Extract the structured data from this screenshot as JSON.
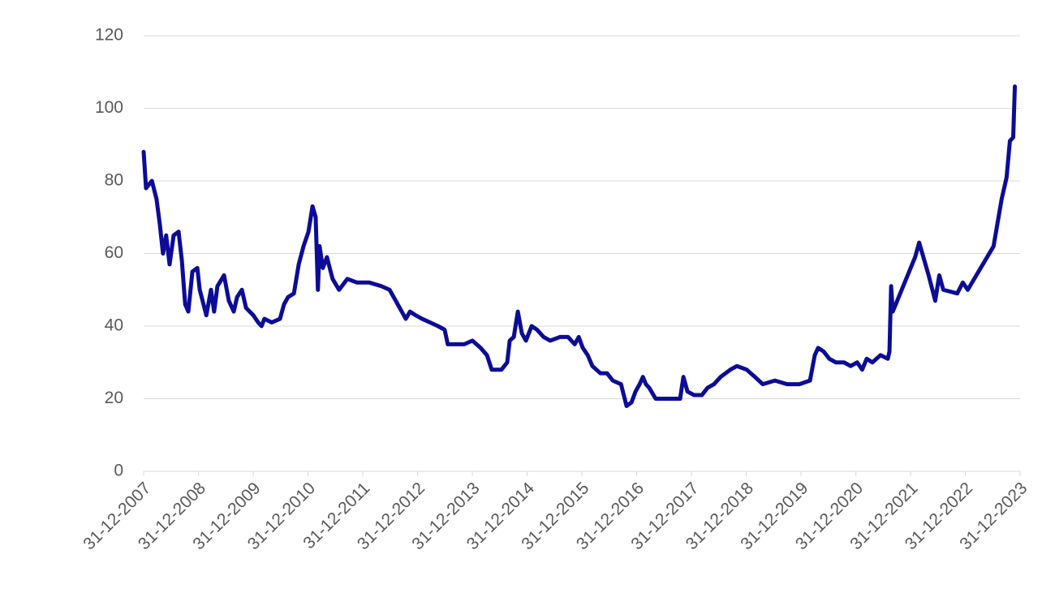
{
  "chart_data": {
    "type": "line",
    "color": "#0c0c98",
    "grid": true,
    "x": [
      "31-12-2007",
      "16-01-2008",
      "24-02-2008",
      "26-03-2008",
      "17-04-2008",
      "08-05-2008",
      "29-05-2008",
      "21-06-2008",
      "18-07-2008",
      "20-08-2008",
      "11-09-2008",
      "03-10-2008",
      "24-10-2008",
      "20-11-2008",
      "23-12-2008",
      "08-01-2009",
      "21-02-2009",
      "24-03-2009",
      "14-04-2009",
      "06-05-2009",
      "19-06-2009",
      "21-07-2009",
      "23-08-2009",
      "14-09-2009",
      "16-10-2009",
      "13-11-2009",
      "31-12-2009",
      "02-02-2010",
      "24-02-2010",
      "15-03-2010",
      "03-05-2010",
      "27-06-2010",
      "24-07-2010",
      "20-08-2010",
      "28-09-2010",
      "30-10-2010",
      "01-12-2010",
      "03-01-2011",
      "30-01-2011",
      "20-02-2011",
      "07-03-2011",
      "18-03-2011",
      "09-04-2011",
      "06-05-2011",
      "13-06-2011",
      "26-07-2011",
      "19-09-2011",
      "23-11-2011",
      "13-02-2012",
      "03-05-2012",
      "27-06-2012",
      "20-08-2012",
      "13-10-2012",
      "10-11-2012",
      "17-12-2012",
      "30-01-2013",
      "24-03-2013",
      "16-05-2013",
      "29-06-2013",
      "20-07-2013",
      "14-09-2013",
      "07-11-2013",
      "31-12-2013",
      "24-02-2014",
      "07-04-2014",
      "09-05-2014",
      "13-07-2014",
      "20-08-2014",
      "06-09-2014",
      "03-10-2014",
      "30-10-2014",
      "26-11-2014",
      "23-12-2014",
      "30-01-2015",
      "07-03-2015",
      "20-04-2015",
      "03-06-2015",
      "07-08-2015",
      "30-09-2015",
      "13-11-2015",
      "10-12-2015",
      "06-01-2016",
      "08-02-2016",
      "10-03-2016",
      "03-05-2016",
      "16-06-2016",
      "24-07-2016",
      "17-09-2016",
      "24-10-2016",
      "26-11-2016",
      "23-12-2016",
      "19-01-2017",
      "10-02-2017",
      "02-03-2017",
      "24-03-2017",
      "06-05-2017",
      "13-06-2017",
      "07-08-2017",
      "16-10-2017",
      "07-11-2017",
      "04-12-2017",
      "17-01-2018",
      "10-03-2018",
      "17-04-2018",
      "30-05-2018",
      "13-07-2018",
      "16-09-2018",
      "30-10-2018",
      "03-01-2019",
      "30-01-2019",
      "27-02-2019",
      "20-04-2019",
      "10-07-2019",
      "30-09-2019",
      "20-12-2019",
      "29-02-2020",
      "01-04-2020",
      "23-04-2020",
      "30-05-2020",
      "07-07-2020",
      "20-08-2020",
      "13-10-2020",
      "26-11-2020",
      "09-01-2021",
      "11-02-2021",
      "13-03-2021",
      "20-04-2021",
      "13-06-2021",
      "01-08-2021",
      "12-08-2021",
      "23-08-2021",
      "03-09-2021",
      "30-01-2022",
      "26-02-2022",
      "30-04-2022",
      "13-06-2022",
      "10-07-2022",
      "06-08-2022",
      "07-11-2022",
      "14-12-2022",
      "16-01-2023",
      "07-07-2023",
      "30-08-2023",
      "02-10-2023",
      "24-10-2023",
      "15-11-2023",
      "26-11-2023"
    ],
    "values": [
      88,
      78,
      80,
      75,
      68,
      60,
      65,
      57,
      65,
      66,
      58,
      46,
      44,
      55,
      56,
      50,
      43,
      50,
      44,
      51,
      54,
      47,
      44,
      48,
      50,
      45,
      43,
      41,
      40,
      42,
      41,
      42,
      46,
      48,
      49,
      57,
      62,
      66,
      73,
      70,
      50,
      62,
      56,
      59,
      53,
      50,
      53,
      52,
      52,
      51,
      50,
      46,
      42,
      44,
      43,
      42,
      41,
      40,
      39,
      35,
      35,
      35,
      36,
      34,
      32,
      28,
      28,
      30,
      36,
      37,
      44,
      38,
      36,
      40,
      39,
      37,
      36,
      37,
      37,
      35,
      37,
      34,
      32,
      29,
      27,
      27,
      25,
      24,
      18,
      19,
      22,
      24,
      26,
      24,
      23,
      20,
      20,
      20,
      20,
      26,
      22,
      21,
      21,
      23,
      24,
      26,
      28,
      29,
      28,
      27,
      26,
      24,
      25,
      24,
      24,
      25,
      32,
      34,
      33,
      31,
      30,
      30,
      29,
      30,
      28,
      31,
      30,
      32,
      31,
      33,
      51,
      44,
      59,
      63,
      54,
      47,
      54,
      50,
      49,
      52,
      50,
      62,
      75,
      81,
      91,
      92,
      106
    ],
    "xlim": [
      "31-12-2007",
      "31-12-2023"
    ],
    "xticks": [
      "31-12-2007",
      "31-12-2008",
      "31-12-2009",
      "31-12-2010",
      "31-12-2011",
      "31-12-2012",
      "31-12-2013",
      "31-12-2014",
      "31-12-2015",
      "31-12-2016",
      "31-12-2017",
      "31-12-2018",
      "31-12-2019",
      "31-12-2020",
      "31-12-2021",
      "31-12-2022",
      "31-12-2023"
    ],
    "ylim": [
      0,
      120
    ],
    "yticks": [
      0,
      20,
      40,
      60,
      80,
      100,
      120
    ]
  }
}
